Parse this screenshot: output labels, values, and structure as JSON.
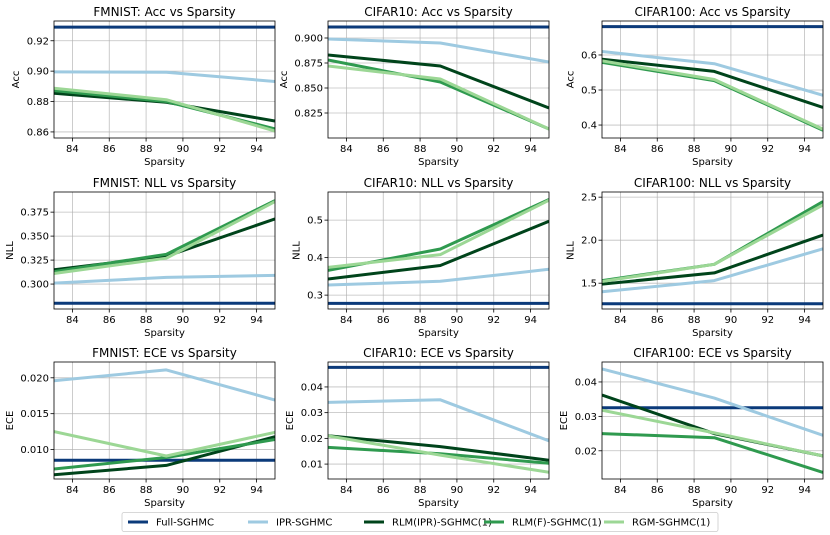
{
  "chart_data": [
    {
      "type": "line",
      "title": "FMNIST: Acc vs Sparsity",
      "xlabel": "Sparsity",
      "ylabel": "Acc",
      "xlim": [
        83,
        95
      ],
      "ylim": [
        0.856,
        0.933
      ],
      "xticks": [
        84,
        86,
        88,
        90,
        92,
        94
      ],
      "yticks": [
        0.86,
        0.88,
        0.9,
        0.92
      ],
      "ytick_labels": [
        "0.86",
        "0.88",
        "0.90",
        "0.92"
      ],
      "grid": true,
      "x": [
        83,
        89.1,
        95
      ],
      "series": [
        {
          "name": "Full-SGHMC",
          "values": [
            0.929,
            0.929,
            0.929
          ]
        },
        {
          "name": "IPR-SGHMC",
          "values": [
            0.8995,
            0.8993,
            0.8932
          ]
        },
        {
          "name": "RLM(IPR)-SGHMC(1)",
          "values": [
            0.8855,
            0.8795,
            0.8672
          ]
        },
        {
          "name": "RLM(F)-SGHMC(1)",
          "values": [
            0.8872,
            0.88,
            0.862
          ]
        },
        {
          "name": "RGM-SGHMC(1)",
          "values": [
            0.8888,
            0.8812,
            0.8606
          ]
        }
      ]
    },
    {
      "type": "line",
      "title": "CIFAR10: Acc vs Sparsity",
      "xlabel": "Sparsity",
      "ylabel": "Acc",
      "xlim": [
        83,
        95
      ],
      "ylim": [
        0.8,
        0.917
      ],
      "xticks": [
        84,
        86,
        88,
        90,
        92,
        94
      ],
      "yticks": [
        0.825,
        0.85,
        0.875,
        0.9
      ],
      "ytick_labels": [
        "0.825",
        "0.850",
        "0.875",
        "0.900"
      ],
      "grid": true,
      "x": [
        83,
        89.1,
        95
      ],
      "series": [
        {
          "name": "Full-SGHMC",
          "values": [
            0.911,
            0.911,
            0.911
          ]
        },
        {
          "name": "IPR-SGHMC",
          "values": [
            0.899,
            0.895,
            0.876
          ]
        },
        {
          "name": "RLM(IPR)-SGHMC(1)",
          "values": [
            0.883,
            0.872,
            0.83
          ]
        },
        {
          "name": "RLM(F)-SGHMC(1)",
          "values": [
            0.878,
            0.856,
            0.809
          ]
        },
        {
          "name": "RGM-SGHMC(1)",
          "values": [
            0.872,
            0.859,
            0.809
          ]
        }
      ]
    },
    {
      "type": "line",
      "title": "CIFAR100: Acc vs Sparsity",
      "xlabel": "Sparsity",
      "ylabel": "Acc",
      "xlim": [
        83,
        95
      ],
      "ylim": [
        0.363,
        0.697
      ],
      "xticks": [
        84,
        86,
        88,
        90,
        92,
        94
      ],
      "yticks": [
        0.4,
        0.5,
        0.6
      ],
      "ytick_labels": [
        "0.4",
        "0.5",
        "0.6"
      ],
      "grid": true,
      "x": [
        83,
        89.1,
        95
      ],
      "series": [
        {
          "name": "Full-SGHMC",
          "values": [
            0.681,
            0.681,
            0.681
          ]
        },
        {
          "name": "IPR-SGHMC",
          "values": [
            0.61,
            0.575,
            0.485
          ]
        },
        {
          "name": "RLM(IPR)-SGHMC(1)",
          "values": [
            0.588,
            0.553,
            0.45
          ]
        },
        {
          "name": "RLM(F)-SGHMC(1)",
          "values": [
            0.579,
            0.527,
            0.385
          ]
        },
        {
          "name": "RGM-SGHMC(1)",
          "values": [
            0.583,
            0.53,
            0.388
          ]
        }
      ]
    },
    {
      "type": "line",
      "title": "FMNIST: NLL vs Sparsity",
      "xlabel": "Sparsity",
      "ylabel": "NLL",
      "xlim": [
        83,
        95
      ],
      "ylim": [
        0.274,
        0.396
      ],
      "xticks": [
        84,
        86,
        88,
        90,
        92,
        94
      ],
      "yticks": [
        0.3,
        0.325,
        0.35,
        0.375
      ],
      "ytick_labels": [
        "0.300",
        "0.325",
        "0.350",
        "0.375"
      ],
      "grid": true,
      "x": [
        83,
        89.1,
        95
      ],
      "series": [
        {
          "name": "Full-SGHMC",
          "values": [
            0.28,
            0.28,
            0.28
          ]
        },
        {
          "name": "IPR-SGHMC",
          "values": [
            0.301,
            0.307,
            0.309
          ]
        },
        {
          "name": "RLM(IPR)-SGHMC(1)",
          "values": [
            0.315,
            0.329,
            0.368
          ]
        },
        {
          "name": "RLM(F)-SGHMC(1)",
          "values": [
            0.313,
            0.331,
            0.387
          ]
        },
        {
          "name": "RGM-SGHMC(1)",
          "values": [
            0.311,
            0.327,
            0.386
          ]
        }
      ]
    },
    {
      "type": "line",
      "title": "CIFAR10: NLL vs Sparsity",
      "xlabel": "Sparsity",
      "ylabel": "NLL",
      "xlim": [
        83,
        95
      ],
      "ylim": [
        0.263,
        0.575
      ],
      "xticks": [
        84,
        86,
        88,
        90,
        92,
        94
      ],
      "yticks": [
        0.3,
        0.4,
        0.5
      ],
      "ytick_labels": [
        "0.3",
        "0.4",
        "0.5"
      ],
      "grid": true,
      "x": [
        83,
        89.1,
        95
      ],
      "series": [
        {
          "name": "Full-SGHMC",
          "values": [
            0.278,
            0.278,
            0.278
          ]
        },
        {
          "name": "IPR-SGHMC",
          "values": [
            0.327,
            0.337,
            0.369
          ]
        },
        {
          "name": "RLM(IPR)-SGHMC(1)",
          "values": [
            0.343,
            0.379,
            0.497
          ]
        },
        {
          "name": "RLM(F)-SGHMC(1)",
          "values": [
            0.366,
            0.423,
            0.555
          ]
        },
        {
          "name": "RGM-SGHMC(1)",
          "values": [
            0.374,
            0.408,
            0.553
          ]
        }
      ]
    },
    {
      "type": "line",
      "title": "CIFAR100: NLL vs Sparsity",
      "xlabel": "Sparsity",
      "ylabel": "NLL",
      "xlim": [
        83,
        95
      ],
      "ylim": [
        1.2,
        2.56
      ],
      "xticks": [
        84,
        86,
        88,
        90,
        92,
        94
      ],
      "yticks": [
        1.5,
        2.0,
        2.5
      ],
      "ytick_labels": [
        "1.5",
        "2.0",
        "2.5"
      ],
      "grid": true,
      "x": [
        83,
        89.1,
        95
      ],
      "series": [
        {
          "name": "Full-SGHMC",
          "values": [
            1.26,
            1.26,
            1.26
          ]
        },
        {
          "name": "IPR-SGHMC",
          "values": [
            1.4,
            1.53,
            1.9
          ]
        },
        {
          "name": "RLM(IPR)-SGHMC(1)",
          "values": [
            1.49,
            1.62,
            2.06
          ]
        },
        {
          "name": "RLM(F)-SGHMC(1)",
          "values": [
            1.53,
            1.72,
            2.45
          ]
        },
        {
          "name": "RGM-SGHMC(1)",
          "values": [
            1.52,
            1.72,
            2.41
          ]
        }
      ]
    },
    {
      "type": "line",
      "title": "FMNIST: ECE vs Sparsity",
      "xlabel": "Sparsity",
      "ylabel": "ECE",
      "xlim": [
        83,
        95
      ],
      "ylim": [
        0.0059,
        0.0222
      ],
      "xticks": [
        84,
        86,
        88,
        90,
        92,
        94
      ],
      "yticks": [
        0.01,
        0.015,
        0.02
      ],
      "ytick_labels": [
        "0.010",
        "0.015",
        "0.020"
      ],
      "grid": true,
      "x": [
        83,
        89.1,
        95
      ],
      "series": [
        {
          "name": "Full-SGHMC",
          "values": [
            0.0085,
            0.0085,
            0.0085
          ]
        },
        {
          "name": "IPR-SGHMC",
          "values": [
            0.0196,
            0.0211,
            0.0169
          ]
        },
        {
          "name": "RLM(IPR)-SGHMC(1)",
          "values": [
            0.0065,
            0.0078,
            0.0118
          ]
        },
        {
          "name": "RLM(F)-SGHMC(1)",
          "values": [
            0.0073,
            0.0089,
            0.0114
          ]
        },
        {
          "name": "RGM-SGHMC(1)",
          "values": [
            0.0125,
            0.0091,
            0.0124
          ]
        }
      ]
    },
    {
      "type": "line",
      "title": "CIFAR10: ECE vs Sparsity",
      "xlabel": "Sparsity",
      "ylabel": "ECE",
      "xlim": [
        83,
        95
      ],
      "ylim": [
        0.0042,
        0.0497
      ],
      "xticks": [
        84,
        86,
        88,
        90,
        92,
        94
      ],
      "yticks": [
        0.01,
        0.02,
        0.03,
        0.04
      ],
      "ytick_labels": [
        "0.01",
        "0.02",
        "0.03",
        "0.04"
      ],
      "grid": true,
      "x": [
        83,
        89.1,
        95
      ],
      "series": [
        {
          "name": "Full-SGHMC",
          "values": [
            0.0476,
            0.0476,
            0.0476
          ]
        },
        {
          "name": "IPR-SGHMC",
          "values": [
            0.034,
            0.035,
            0.019
          ]
        },
        {
          "name": "RLM(IPR)-SGHMC(1)",
          "values": [
            0.021,
            0.0168,
            0.0115
          ]
        },
        {
          "name": "RLM(F)-SGHMC(1)",
          "values": [
            0.0165,
            0.014,
            0.0103
          ]
        },
        {
          "name": "RGM-SGHMC(1)",
          "values": [
            0.021,
            0.0135,
            0.0068
          ]
        }
      ]
    },
    {
      "type": "line",
      "title": "CIFAR100: ECE vs Sparsity",
      "xlabel": "Sparsity",
      "ylabel": "ECE",
      "xlim": [
        83,
        95
      ],
      "ylim": [
        0.0118,
        0.0458
      ],
      "xticks": [
        84,
        86,
        88,
        90,
        92,
        94
      ],
      "yticks": [
        0.02,
        0.03,
        0.04
      ],
      "ytick_labels": [
        "0.02",
        "0.03",
        "0.04"
      ],
      "grid": true,
      "x": [
        83,
        89.1,
        95
      ],
      "series": [
        {
          "name": "Full-SGHMC",
          "values": [
            0.0325,
            0.0325,
            0.0325
          ]
        },
        {
          "name": "IPR-SGHMC",
          "values": [
            0.0438,
            0.0353,
            0.0245
          ]
        },
        {
          "name": "RLM(IPR)-SGHMC(1)",
          "values": [
            0.0362,
            0.025,
            0.0185
          ]
        },
        {
          "name": "RLM(F)-SGHMC(1)",
          "values": [
            0.025,
            0.0238,
            0.0137
          ]
        },
        {
          "name": "RGM-SGHMC(1)",
          "values": [
            0.0318,
            0.0252,
            0.0185
          ]
        }
      ]
    }
  ],
  "legend": {
    "placement": "bottom-center",
    "entries": [
      {
        "name": "Full-SGHMC",
        "color": "#0b3a7a"
      },
      {
        "name": "IPR-SGHMC",
        "color": "#9ecae1"
      },
      {
        "name": "RLM(IPR)-SGHMC(1)",
        "color": "#00441b"
      },
      {
        "name": "RLM(F)-SGHMC(1)",
        "color": "#2f9a4f"
      },
      {
        "name": "RGM-SGHMC(1)",
        "color": "#9cd795"
      }
    ]
  }
}
